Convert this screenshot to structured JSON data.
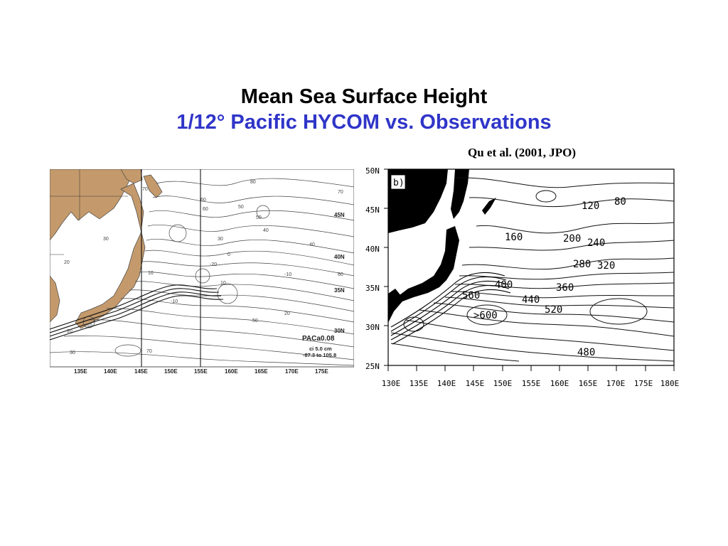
{
  "slide": {
    "title": "Mean Sea Surface Height",
    "subtitle": "1/12° Pacific HYCOM vs. Observations",
    "citation": "Qu et al. (2001, JPO)",
    "colors": {
      "title": "#000000",
      "subtitle": "#2f35c8",
      "land_left": "#c49a6c",
      "land_right": "#000000"
    }
  },
  "left_map": {
    "lon_labels": [
      "135E",
      "140E",
      "145E",
      "150E",
      "155E",
      "160E",
      "165E",
      "170E",
      "175E"
    ],
    "lat_labels": [
      "30N",
      "35N",
      "40N",
      "45N"
    ],
    "contour_labels": [
      "80",
      "70",
      "60",
      "50",
      "40",
      "30",
      "20",
      "10",
      "0",
      "-10",
      "-20",
      "70",
      "60",
      "50",
      "40",
      "30",
      "20",
      "10",
      "-10",
      "10",
      "20",
      "30",
      "50",
      "70",
      "60"
    ],
    "info": {
      "model": "PACa0.08",
      "ci": "ci  5.0 cm",
      "range": "-87.3 to  105.8"
    }
  },
  "right_map": {
    "panel_label": "b)",
    "lon_labels": [
      "130E",
      "135E",
      "140E",
      "145E",
      "150E",
      "155E",
      "160E",
      "165E",
      "170E",
      "175E",
      "180E"
    ],
    "lat_labels": [
      "50N",
      "45N",
      "40N",
      "35N",
      "30N",
      "25N"
    ],
    "contour_labels": [
      "120",
      "80",
      "160",
      "200",
      "240",
      "280",
      "320",
      "400",
      "360",
      "560",
      "440",
      "520",
      ">600",
      "480"
    ]
  }
}
